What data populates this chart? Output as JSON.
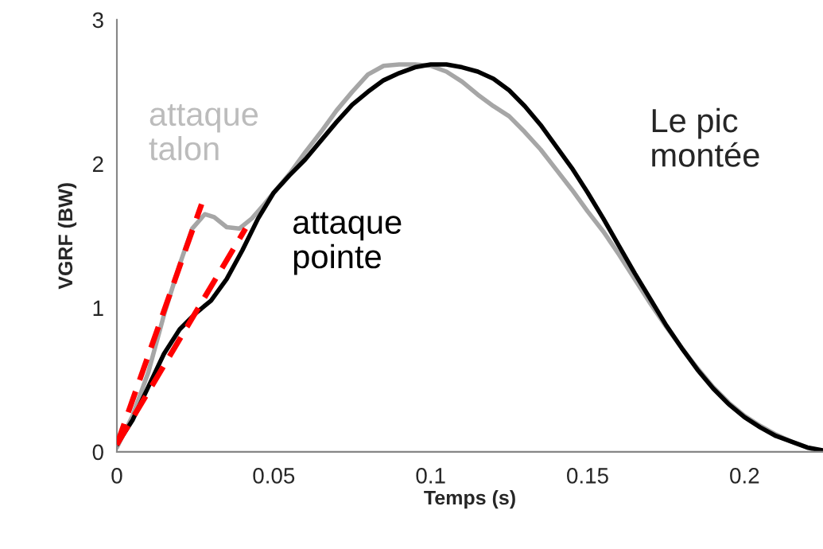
{
  "chart_data": {
    "type": "line",
    "xlabel": "Temps (s)",
    "ylabel": "VGRF (BW)",
    "xlim": [
      0,
      0.225
    ],
    "ylim": [
      0,
      3
    ],
    "xticks": [
      0,
      0.05,
      0.1,
      0.15,
      0.2
    ],
    "yticks": [
      0,
      1,
      2,
      3
    ],
    "grid": false,
    "legend": false,
    "marker": "none",
    "series": [
      {
        "name": "attaque\ntalon",
        "color": "#a6a6a6",
        "x": [
          0,
          0.005,
          0.01,
          0.015,
          0.02,
          0.024,
          0.028,
          0.031,
          0.035,
          0.039,
          0.043,
          0.047,
          0.05,
          0.055,
          0.06,
          0.065,
          0.07,
          0.075,
          0.08,
          0.085,
          0.09,
          0.095,
          0.1,
          0.105,
          0.11,
          0.115,
          0.12,
          0.125,
          0.13,
          0.135,
          0.14,
          0.145,
          0.15,
          0.155,
          0.16,
          0.165,
          0.17,
          0.175,
          0.18,
          0.185,
          0.19,
          0.195,
          0.2,
          0.205,
          0.21,
          0.215,
          0.22,
          0.223
        ],
        "values": [
          0.03,
          0.25,
          0.55,
          0.95,
          1.3,
          1.55,
          1.65,
          1.63,
          1.56,
          1.55,
          1.62,
          1.72,
          1.8,
          1.93,
          2.08,
          2.22,
          2.37,
          2.5,
          2.62,
          2.68,
          2.69,
          2.69,
          2.68,
          2.64,
          2.57,
          2.48,
          2.4,
          2.33,
          2.22,
          2.1,
          1.96,
          1.82,
          1.67,
          1.53,
          1.37,
          1.2,
          1.03,
          0.87,
          0.72,
          0.58,
          0.45,
          0.34,
          0.25,
          0.18,
          0.12,
          0.07,
          0.03,
          0.01
        ]
      },
      {
        "name": "attaque\npointe",
        "color": "#000000",
        "x": [
          0,
          0.005,
          0.01,
          0.015,
          0.02,
          0.025,
          0.03,
          0.035,
          0.04,
          0.045,
          0.05,
          0.055,
          0.06,
          0.065,
          0.07,
          0.075,
          0.08,
          0.085,
          0.09,
          0.095,
          0.1,
          0.105,
          0.11,
          0.115,
          0.12,
          0.125,
          0.13,
          0.135,
          0.14,
          0.145,
          0.15,
          0.155,
          0.16,
          0.165,
          0.17,
          0.175,
          0.18,
          0.185,
          0.19,
          0.195,
          0.2,
          0.205,
          0.21,
          0.215,
          0.22,
          0.225
        ],
        "values": [
          0.05,
          0.22,
          0.45,
          0.68,
          0.85,
          0.96,
          1.05,
          1.2,
          1.4,
          1.62,
          1.8,
          1.92,
          2.03,
          2.16,
          2.29,
          2.41,
          2.5,
          2.58,
          2.63,
          2.67,
          2.69,
          2.69,
          2.67,
          2.64,
          2.59,
          2.51,
          2.4,
          2.27,
          2.12,
          1.97,
          1.8,
          1.62,
          1.43,
          1.24,
          1.06,
          0.88,
          0.72,
          0.57,
          0.44,
          0.33,
          0.24,
          0.17,
          0.11,
          0.07,
          0.03,
          0.01
        ]
      },
      {
        "color": "#ff0000",
        "line_style": "dashed",
        "x": [
          0,
          0.027
        ],
        "values": [
          0.05,
          1.72
        ]
      },
      {
        "color": "#ff0000",
        "line_style": "dashed",
        "x": [
          0,
          0.041
        ],
        "values": [
          0.05,
          1.55
        ]
      }
    ],
    "annotations": [
      "Le pic\nmontée"
    ]
  }
}
